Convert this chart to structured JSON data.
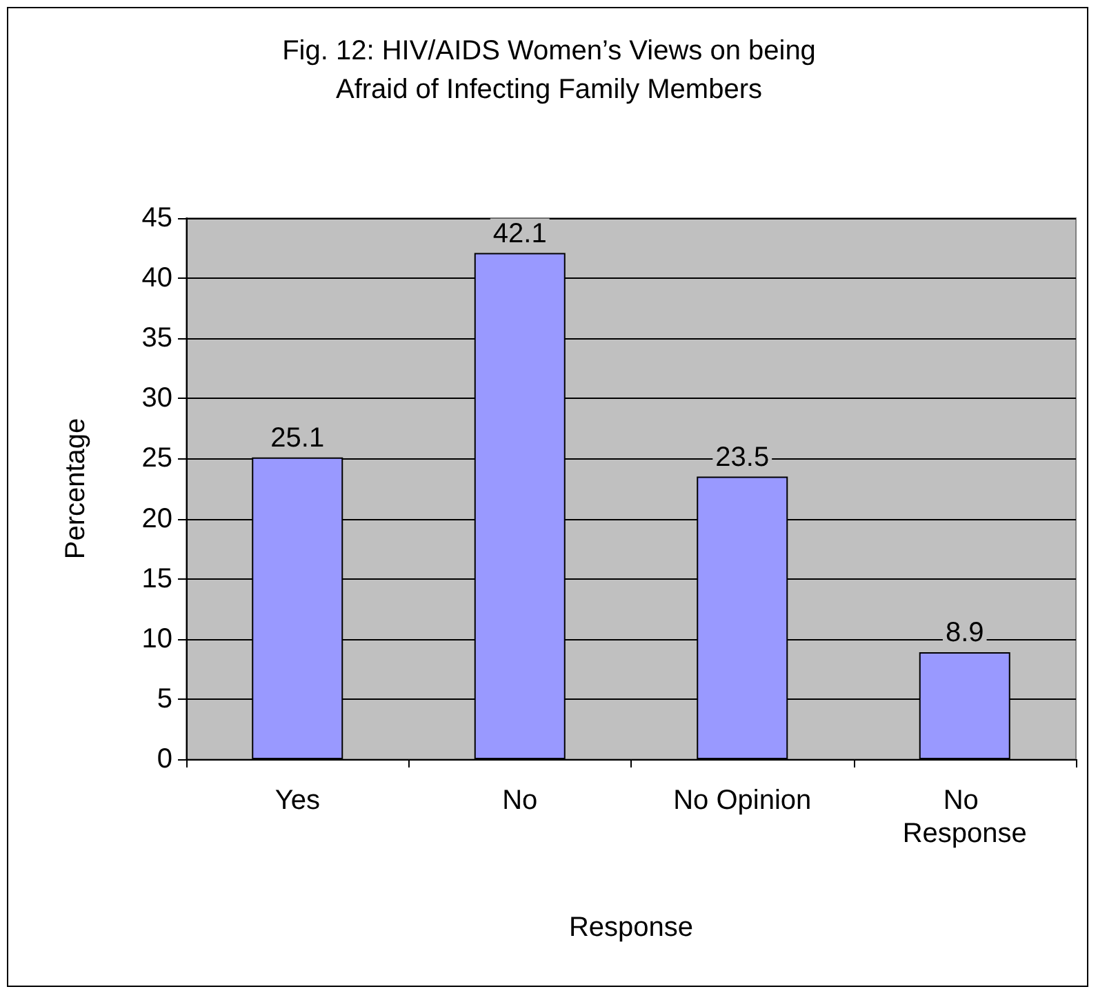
{
  "chart_data": {
    "type": "bar",
    "title": "Fig. 12: HIV/AIDS Women’s Views on being\nAfraid of Infecting Family Members",
    "xlabel": "Response",
    "ylabel": "Percentage",
    "categories": [
      "Yes",
      "No",
      "No Opinion",
      "No Response"
    ],
    "values": [
      25.1,
      42.1,
      23.5,
      8.9
    ],
    "color": "#9999ff",
    "ylim": [
      0,
      45
    ],
    "yticks": [
      0,
      5,
      10,
      15,
      20,
      25,
      30,
      35,
      40,
      45
    ],
    "grid": "y",
    "data_labels": true
  }
}
